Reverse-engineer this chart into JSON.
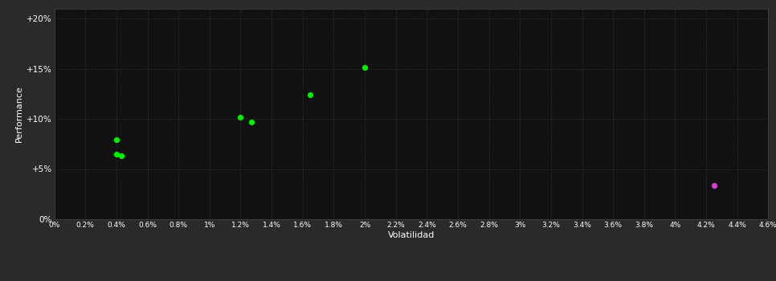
{
  "xlabel": "Volatilidad",
  "ylabel": "Performance",
  "bg_color": "#1c1c1c",
  "plot_bg_color": "#111111",
  "outer_bg_color": "#2a2a2a",
  "grid_color": "#444444",
  "text_color": "#ffffff",
  "xlim": [
    0,
    0.046
  ],
  "ylim": [
    0,
    0.21
  ],
  "xtick_labels": [
    "0%",
    "0.2%",
    "0.4%",
    "0.6%",
    "0.8%",
    "1%",
    "1.2%",
    "1.4%",
    "1.6%",
    "1.8%",
    "2%",
    "2.2%",
    "2.4%",
    "2.6%",
    "2.8%",
    "3%",
    "3.2%",
    "3.4%",
    "3.6%",
    "3.8%",
    "4%",
    "4.2%",
    "4.4%",
    "4.6%"
  ],
  "xtick_values": [
    0,
    0.002,
    0.004,
    0.006,
    0.008,
    0.01,
    0.012,
    0.014,
    0.016,
    0.018,
    0.02,
    0.022,
    0.024,
    0.026,
    0.028,
    0.03,
    0.032,
    0.034,
    0.036,
    0.038,
    0.04,
    0.042,
    0.044,
    0.046
  ],
  "ytick_labels": [
    "0%",
    "+5%",
    "+10%",
    "+15%",
    "+20%"
  ],
  "ytick_values": [
    0,
    0.05,
    0.1,
    0.15,
    0.2
  ],
  "green_points": [
    [
      0.004,
      0.079
    ],
    [
      0.004,
      0.065
    ],
    [
      0.0043,
      0.063
    ],
    [
      0.012,
      0.102
    ],
    [
      0.0127,
      0.097
    ],
    [
      0.0165,
      0.124
    ],
    [
      0.02,
      0.151
    ]
  ],
  "magenta_points": [
    [
      0.0425,
      0.034
    ]
  ],
  "green_color": "#00ee00",
  "magenta_color": "#cc44cc",
  "point_size": 18,
  "fig_width": 9.66,
  "fig_height": 3.5,
  "dpi": 100
}
